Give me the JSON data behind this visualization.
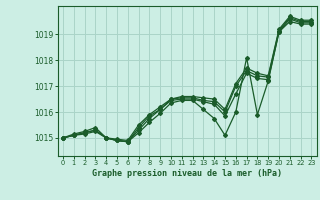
{
  "title": "Graphe pression niveau de la mer (hPa)",
  "bg_color": "#cceee4",
  "grid_color": "#aad4c8",
  "line_color": "#1a5c2a",
  "xlim": [
    -0.5,
    23.5
  ],
  "ylim": [
    1014.3,
    1020.1
  ],
  "yticks": [
    1015,
    1016,
    1017,
    1018,
    1019
  ],
  "xticks": [
    0,
    1,
    2,
    3,
    4,
    5,
    6,
    7,
    8,
    9,
    10,
    11,
    12,
    13,
    14,
    15,
    16,
    17,
    18,
    19,
    20,
    21,
    22,
    23
  ],
  "series": [
    [
      1015.0,
      1015.1,
      1015.15,
      1015.25,
      1015.0,
      1014.9,
      1014.85,
      1015.2,
      1015.6,
      1015.95,
      1016.35,
      1016.45,
      1016.45,
      1016.1,
      1015.75,
      1015.1,
      1016.0,
      1018.1,
      1015.9,
      1017.2,
      1019.1,
      1019.5,
      1019.4,
      1019.4
    ],
    [
      1015.0,
      1015.1,
      1015.2,
      1015.3,
      1015.0,
      1014.9,
      1014.85,
      1015.3,
      1015.75,
      1016.1,
      1016.45,
      1016.5,
      1016.5,
      1016.4,
      1016.3,
      1015.85,
      1016.7,
      1017.5,
      1017.3,
      1017.25,
      1019.1,
      1019.6,
      1019.45,
      1019.45
    ],
    [
      1015.0,
      1015.1,
      1015.2,
      1015.3,
      1015.0,
      1014.9,
      1014.85,
      1015.4,
      1015.85,
      1016.1,
      1016.5,
      1016.55,
      1016.55,
      1016.45,
      1016.4,
      1016.0,
      1017.0,
      1017.6,
      1017.4,
      1017.35,
      1019.15,
      1019.65,
      1019.5,
      1019.5
    ],
    [
      1015.0,
      1015.15,
      1015.25,
      1015.4,
      1015.0,
      1014.95,
      1014.9,
      1015.5,
      1015.9,
      1016.2,
      1016.5,
      1016.6,
      1016.6,
      1016.55,
      1016.5,
      1016.1,
      1017.1,
      1017.7,
      1017.5,
      1017.4,
      1019.2,
      1019.7,
      1019.55,
      1019.55
    ]
  ]
}
